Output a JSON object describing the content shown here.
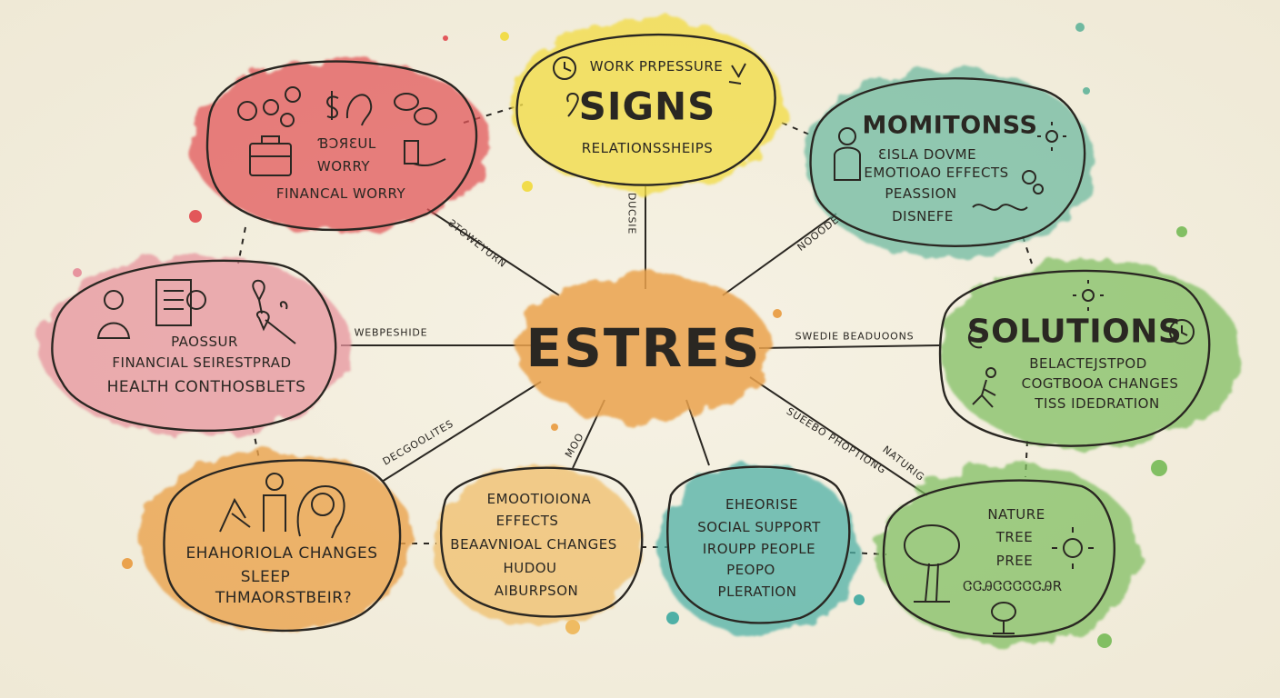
{
  "center": {
    "title": "ESTRES"
  },
  "nodes": {
    "red": {
      "line1": "ƁƆЯƐUL",
      "line2": "WORRY",
      "line3": "FINANCAL WORRY"
    },
    "yellow": {
      "line1": "WORK PRPESSURE",
      "title": "SIGNS",
      "line2": "RELATIONSSHEIPS"
    },
    "teal_top": {
      "title": "MOMITONSS",
      "line1": "ƐISLA  DOVME",
      "line2": "EMOTIOAO EFFECTS",
      "line3": "PEASSION",
      "line4": "DISNEFE"
    },
    "pink": {
      "line1": "PAOSSUR",
      "line2": "FINANCIAL SEIRESTPRAD",
      "line3": "HEALTH CONTHOSBLETS"
    },
    "green": {
      "title": "SOLUTIONS",
      "line1": "BELACTEJSTPOD",
      "line2": "COGTBOOA CHANGES",
      "line3": "TISS IDEDRATION"
    },
    "orange": {
      "line1": "EHAHORIOLA CHANGES",
      "line2": "SLEEP",
      "line3": "THMAORSTBEIR?"
    },
    "amber": {
      "line1": "EMOOTIOIONA",
      "line2": "EFFECTS",
      "line3": "BEAAVNIOAL CHANGES",
      "line4": "HUDOU",
      "line5": "AIBURPSON"
    },
    "teal_bottom": {
      "line1": "EHEORISE",
      "line2": "SOCIAL SUPPORT",
      "line3": "IROUPP PEOPLE",
      "line4": "PEOPO",
      "line5": "PLERATION"
    },
    "nature": {
      "line1": "NATURE",
      "line2": "TREE",
      "line3": "PREE",
      "line4": "ᏣᏣᎯᏣᏣᏣᏣᏣᎯR"
    }
  },
  "connectors": {
    "c1": "ƧTOWEYURN",
    "c2": "DUCSIE",
    "c3": "NOOODE",
    "c4": "WEBPESHIDE",
    "c5": "SWEDIE BEADUOONS",
    "c6": "DECGOOLITES",
    "c7": "MOO",
    "c8": "SUEEBO PHOPTIONG",
    "c9": "NATURIG"
  },
  "colors": {
    "red": "#e2575a",
    "yellow": "#f1dc4a",
    "teal": "#6fb9a0",
    "pink": "#e7949e",
    "green": "#82bf63",
    "orange": "#eaa24d",
    "amber": "#efbb62",
    "teal_blue": "#4fb0a6",
    "ink": "#2a2722"
  }
}
